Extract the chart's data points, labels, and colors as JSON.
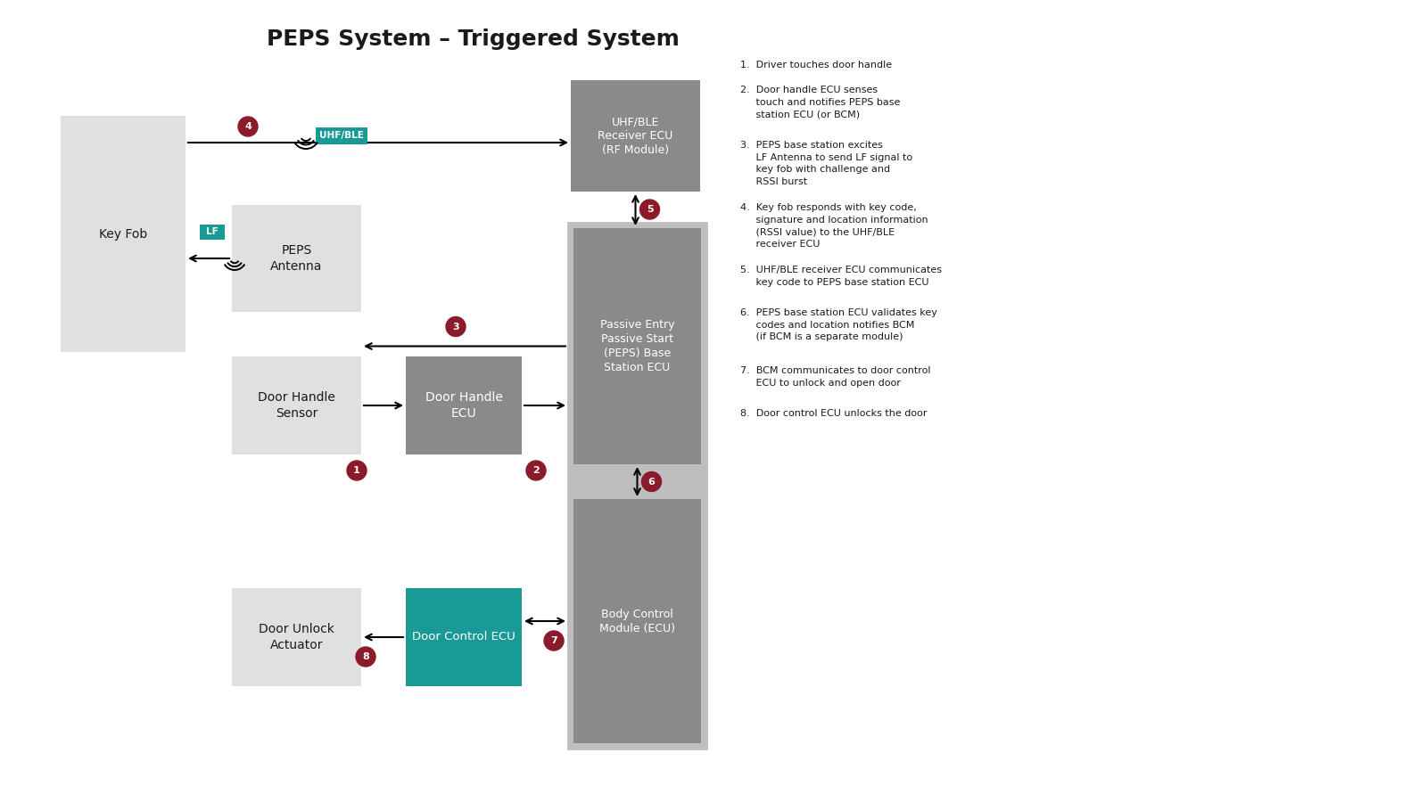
{
  "title": "PEPS System – Triggered System",
  "title_fontsize": 18,
  "background_color": "#ffffff",
  "colors": {
    "light_gray_box": "#e0e0e0",
    "medium_gray_box": "#8a8a8a",
    "teal_box": "#1a9a96",
    "container_border": "#b8b8b8",
    "container_inner": "#8a8a8a",
    "red_circle": "#8b1a2a",
    "teal_label": "#1a9a96",
    "arrow_color": "#000000",
    "text_dark": "#1a1a1a",
    "text_white": "#ffffff"
  },
  "legend_items": [
    "1.  Driver touches door handle",
    "2.  Door handle ECU senses\n     touch and notifies PEPS base\n     station ECU (or BCM)",
    "3.  PEPS base station excites\n     LF Antenna to send LF signal to\n     key fob with challenge and\n     RSSI burst",
    "4.  Key fob responds with key code,\n     signature and location information\n     (RSSI value) to the UHF/BLE\n     receiver ECU",
    "5.  UHF/BLE receiver ECU communicates\n     key code to PEPS base station ECU",
    "6.  PEPS base station ECU validates key\n     codes and location notifies BCM\n     (if BCM is a separate module)",
    "7.  BCM communicates to door control\n     ECU to unlock and open door",
    "8.  Door control ECU unlocks the door"
  ]
}
